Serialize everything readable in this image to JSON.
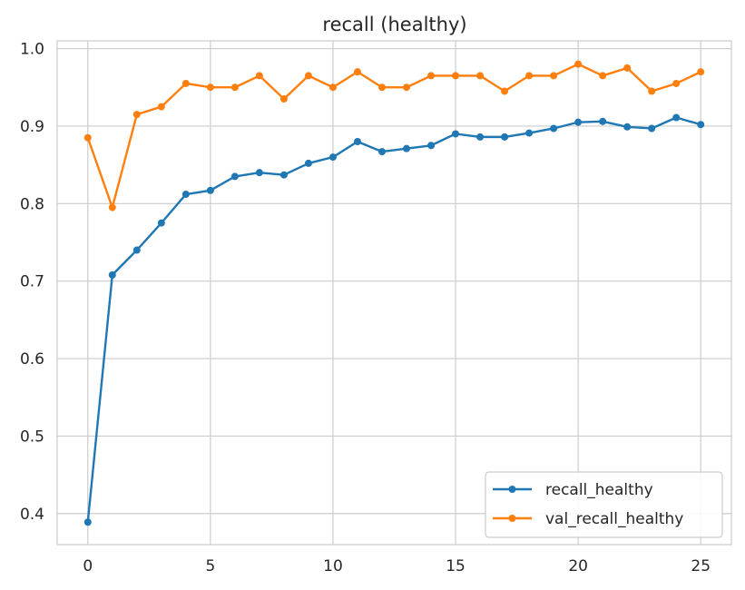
{
  "chart_data": {
    "type": "line",
    "title": "recall (healthy)",
    "xlabel": "",
    "ylabel": "",
    "x": [
      0,
      1,
      2,
      3,
      4,
      5,
      6,
      7,
      8,
      9,
      10,
      11,
      12,
      13,
      14,
      15,
      16,
      17,
      18,
      19,
      20,
      21,
      22,
      23,
      24,
      25
    ],
    "xlim": [
      -1.25,
      26.25
    ],
    "ylim": [
      0.36,
      1.01
    ],
    "xticks": [
      0,
      5,
      10,
      15,
      20,
      25
    ],
    "yticks": [
      0.4,
      0.5,
      0.6,
      0.7,
      0.8,
      0.9,
      1.0
    ],
    "xtick_labels": [
      "0",
      "5",
      "10",
      "15",
      "20",
      "25"
    ],
    "ytick_labels": [
      "0.4",
      "0.5",
      "0.6",
      "0.7",
      "0.8",
      "0.9",
      "1.0"
    ],
    "grid": true,
    "legend_position": "lower-right",
    "series": [
      {
        "name": "recall_healthy",
        "color": "#1f77b4",
        "marker": "circle",
        "values": [
          0.389,
          0.708,
          0.74,
          0.775,
          0.812,
          0.817,
          0.835,
          0.84,
          0.837,
          0.852,
          0.86,
          0.88,
          0.867,
          0.871,
          0.875,
          0.89,
          0.886,
          0.886,
          0.891,
          0.897,
          0.905,
          0.906,
          0.899,
          0.897,
          0.911,
          0.902
        ]
      },
      {
        "name": "val_recall_healthy",
        "color": "#ff7f0e",
        "marker": "circle",
        "values": [
          0.885,
          0.795,
          0.915,
          0.925,
          0.955,
          0.95,
          0.95,
          0.965,
          0.935,
          0.965,
          0.95,
          0.97,
          0.95,
          0.95,
          0.965,
          0.965,
          0.965,
          0.945,
          0.965,
          0.965,
          0.98,
          0.965,
          0.975,
          0.945,
          0.955,
          0.97
        ]
      }
    ]
  }
}
